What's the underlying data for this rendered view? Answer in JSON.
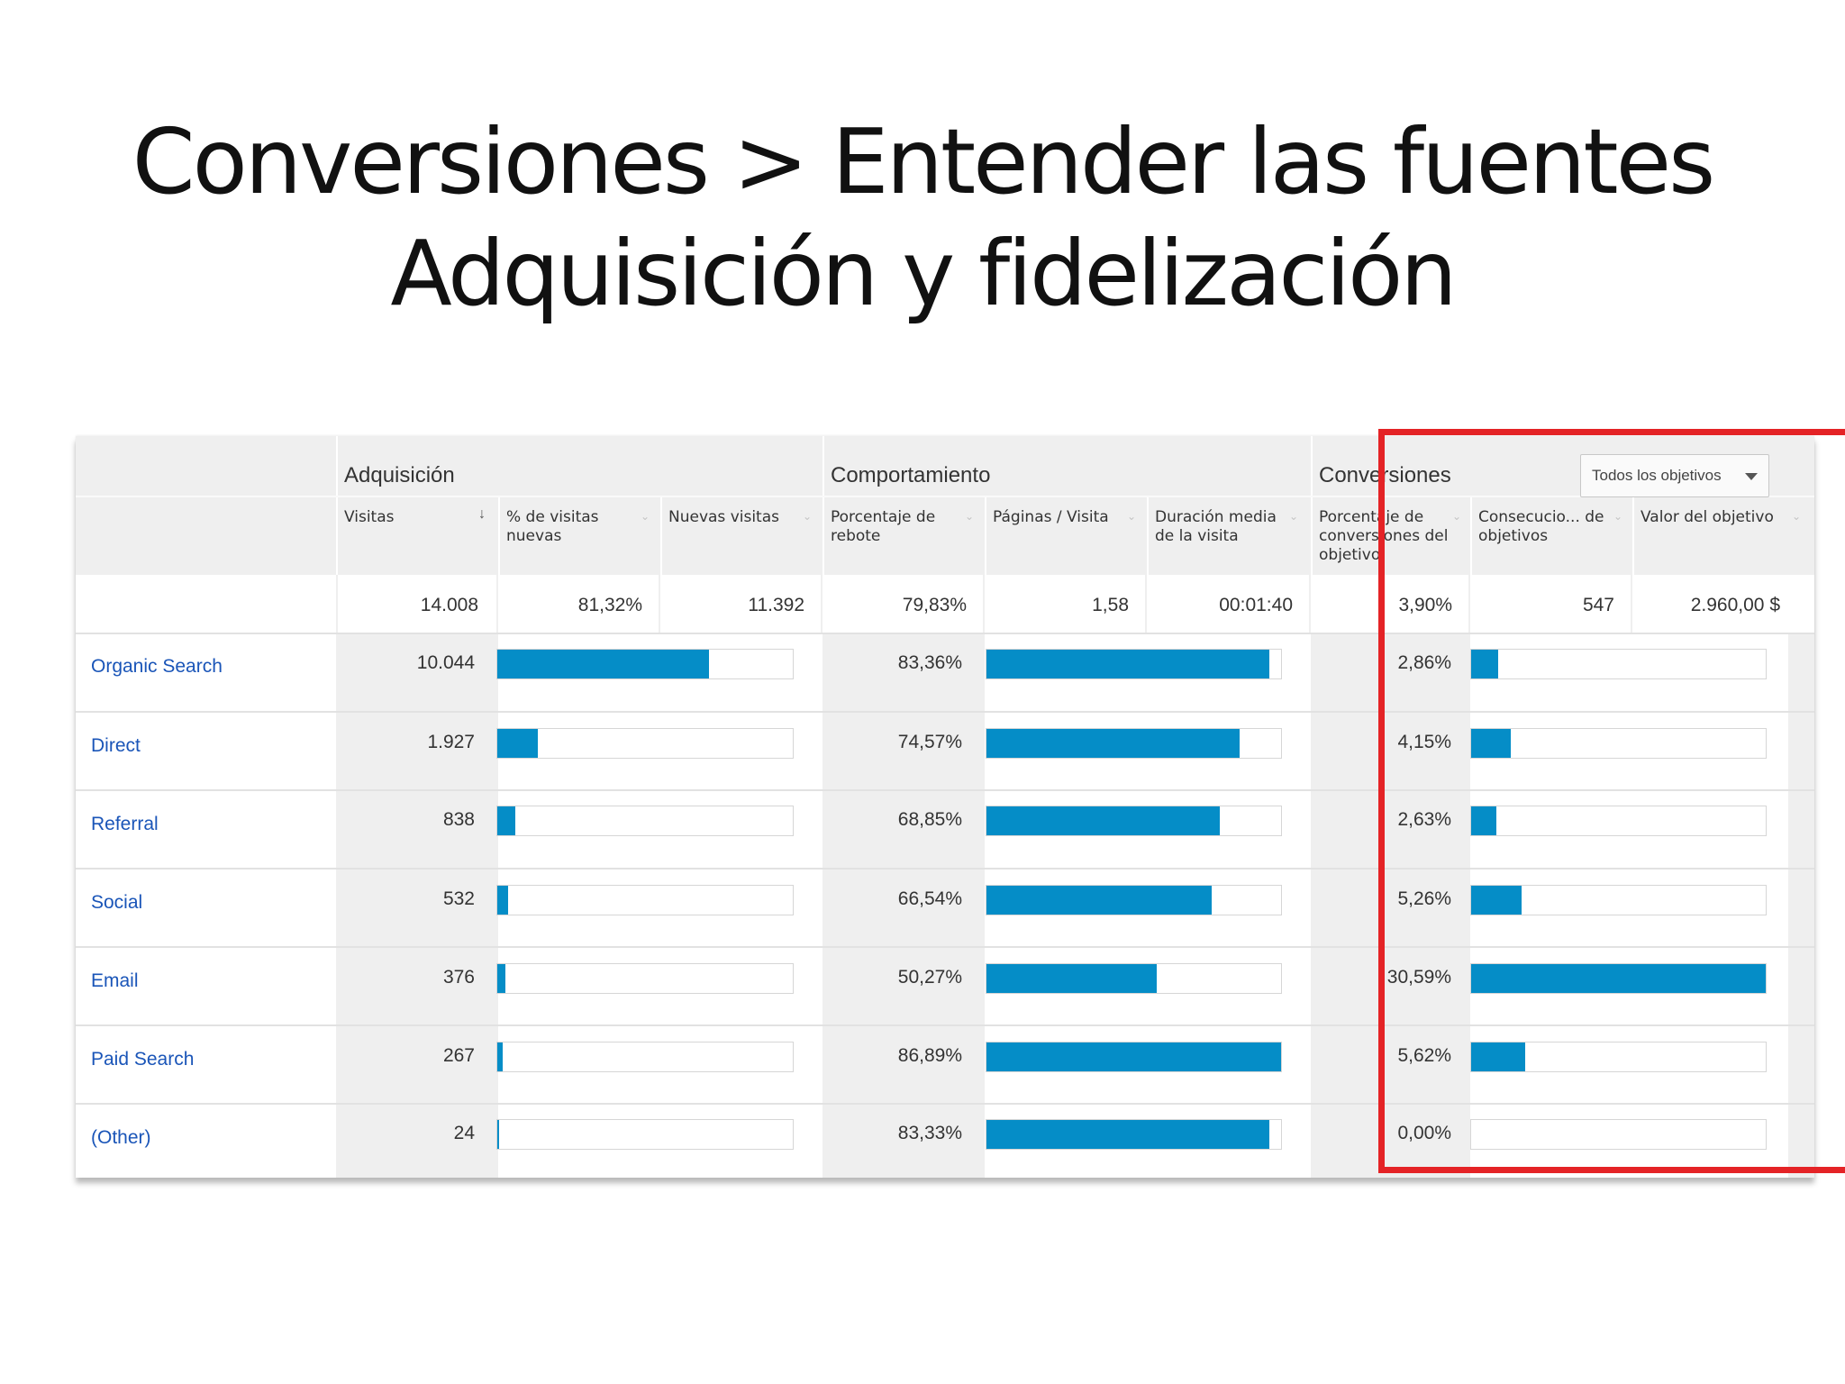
{
  "slide": {
    "title_line1": "Conversiones > Entender las fuentes",
    "title_line2": "Adquisición y fidelización"
  },
  "groups": {
    "acquisition": "Adquisición",
    "behavior": "Comportamiento",
    "conversions": "Conversiones"
  },
  "goal_selector": {
    "label": "Todos los objetivos",
    "icon": "caret-down-icon"
  },
  "columns": [
    {
      "label": "Visitas",
      "sorted": true
    },
    {
      "label": "% de visitas nuevas"
    },
    {
      "label": "Nuevas visitas"
    },
    {
      "label": "Porcentaje de rebote"
    },
    {
      "label": "Páginas / Visita"
    },
    {
      "label": "Duración media de la visita"
    },
    {
      "label": "Porcentaje de conversiones del objetivo"
    },
    {
      "label": "Consecucio... de objetivos"
    },
    {
      "label": "Valor del objetivo"
    }
  ],
  "totals": [
    "14.008",
    "81,32%",
    "11.392",
    "79,83%",
    "1,58",
    "00:01:40",
    "3,90%",
    "547",
    "2.960,00 $"
  ],
  "rows": [
    {
      "source": "Organic Search",
      "visits": "10.044",
      "visits_share": 0.717,
      "bounce": "83,36%",
      "bounce_share": 0.959,
      "conv": "2,86%",
      "conv_share": 0.093
    },
    {
      "source": "Direct",
      "visits": "1.927",
      "visits_share": 0.138,
      "bounce": "74,57%",
      "bounce_share": 0.858,
      "conv": "4,15%",
      "conv_share": 0.136
    },
    {
      "source": "Referral",
      "visits": "838",
      "visits_share": 0.06,
      "bounce": "68,85%",
      "bounce_share": 0.792,
      "conv": "2,63%",
      "conv_share": 0.086
    },
    {
      "source": "Social",
      "visits": "532",
      "visits_share": 0.038,
      "bounce": "66,54%",
      "bounce_share": 0.766,
      "conv": "5,26%",
      "conv_share": 0.172
    },
    {
      "source": "Email",
      "visits": "376",
      "visits_share": 0.027,
      "bounce": "50,27%",
      "bounce_share": 0.579,
      "conv": "30,59%",
      "conv_share": 1.0
    },
    {
      "source": "Paid Search",
      "visits": "267",
      "visits_share": 0.019,
      "bounce": "86,89%",
      "bounce_share": 1.0,
      "conv": "5,62%",
      "conv_share": 0.184
    },
    {
      "source": "(Other)",
      "visits": "24",
      "visits_share": 0.002,
      "bounce": "83,33%",
      "bounce_share": 0.959,
      "conv": "0,00%",
      "conv_share": 0.0
    }
  ],
  "colors": {
    "bar": "#058dc7",
    "link": "#1a55b8",
    "highlight": "#e42326"
  }
}
